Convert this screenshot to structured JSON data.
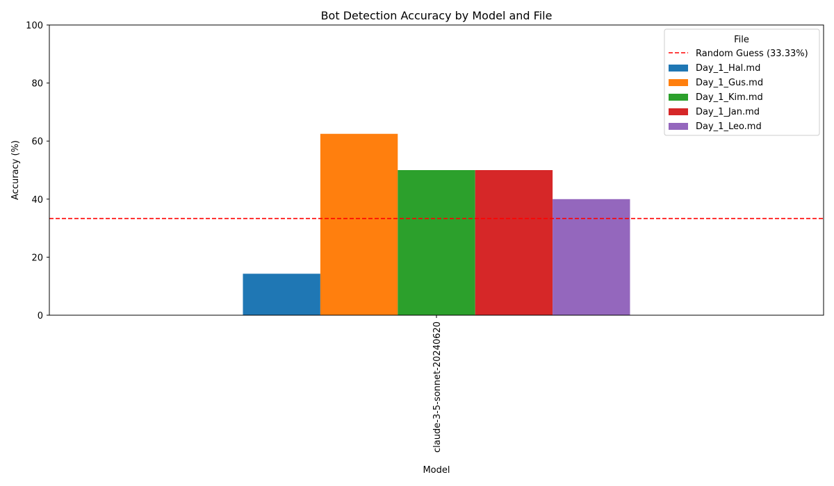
{
  "chart_data": {
    "type": "bar",
    "title": "Bot Detection Accuracy by Model and File",
    "xlabel": "Model",
    "ylabel": "Accuracy (%)",
    "ylim": [
      0,
      100
    ],
    "yticks": [
      0,
      20,
      40,
      60,
      80,
      100
    ],
    "categories": [
      "claude-3-5-sonnet-20240620"
    ],
    "series": [
      {
        "name": "Day_1_Hal.md",
        "color": "#1f77b4",
        "values": [
          14.29
        ]
      },
      {
        "name": "Day_1_Gus.md",
        "color": "#ff7f0e",
        "values": [
          62.5
        ]
      },
      {
        "name": "Day_1_Kim.md",
        "color": "#2ca02c",
        "values": [
          50.0
        ]
      },
      {
        "name": "Day_1_Jan.md",
        "color": "#d62728",
        "values": [
          50.0
        ]
      },
      {
        "name": "Day_1_Leo.md",
        "color": "#9467bd",
        "values": [
          40.0
        ]
      }
    ],
    "reference_line": {
      "label": "Random Guess (33.33%)",
      "value": 33.33,
      "color": "#ff0000",
      "style": "dashed"
    },
    "legend": {
      "title": "File",
      "placement": "top-right"
    },
    "grid": false
  }
}
